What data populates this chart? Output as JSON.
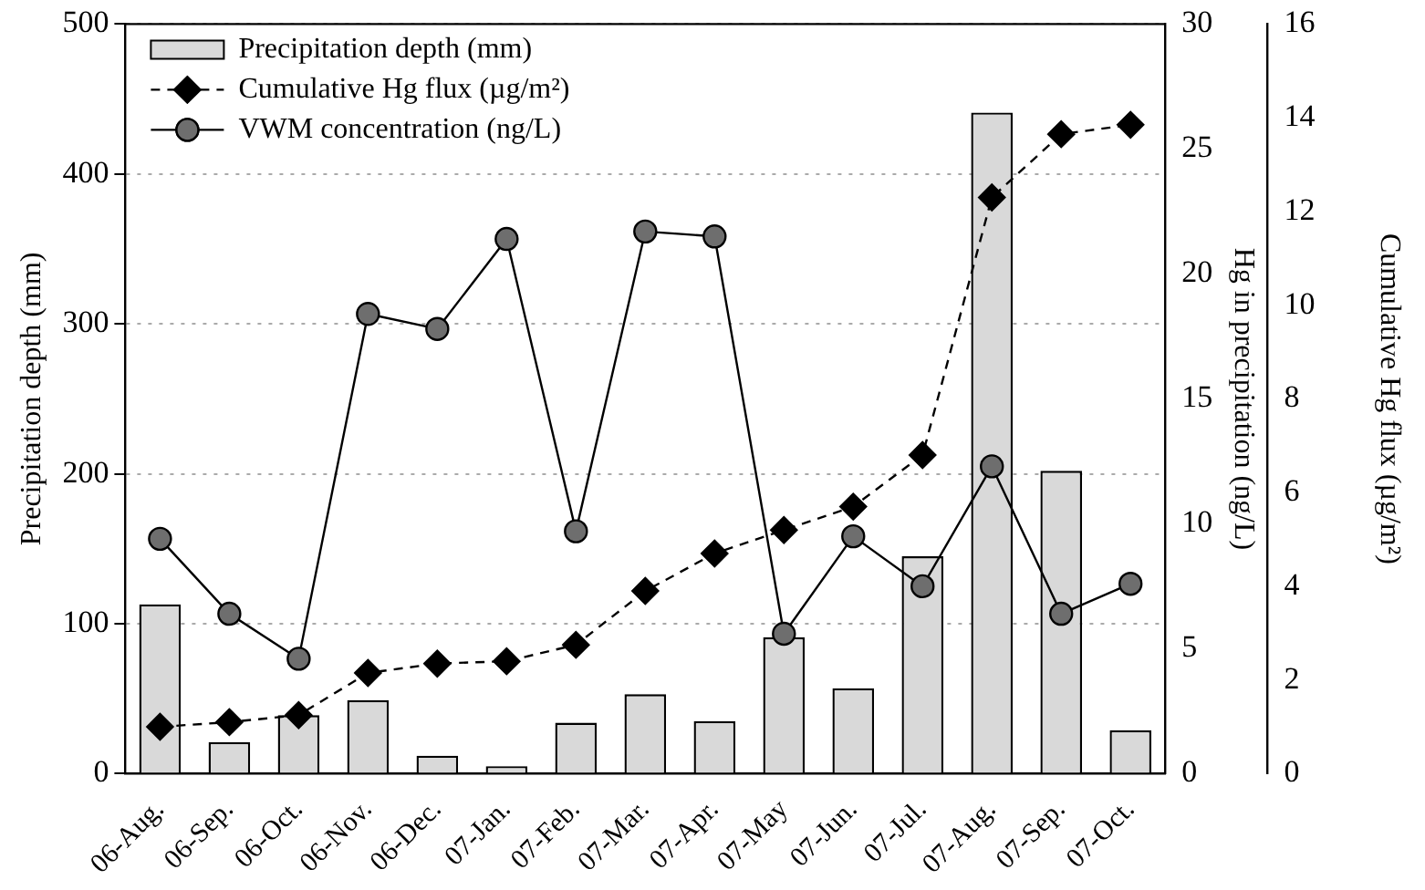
{
  "chart_data": {
    "type": "bar",
    "categories": [
      "06-Aug.",
      "06-Sep.",
      "06-Oct.",
      "06-Nov.",
      "06-Dec.",
      "07-Jan.",
      "07-Feb.",
      "07-Mar.",
      "07-Apr.",
      "07-May",
      "07-Jun.",
      "07-Jul.",
      "07-Aug.",
      "07-Sep.",
      "07-Oct."
    ],
    "ylabel": "Precipitation depth (mm)",
    "y2label": "Hg in precipitation (ng/L)",
    "y3label": "Cumulative Hg flux (µg/m²)",
    "ylim": [
      0,
      500
    ],
    "yticks": [
      0,
      100,
      200,
      300,
      400,
      500
    ],
    "y2lim": [
      0,
      30
    ],
    "y2ticks": [
      0,
      5,
      10,
      15,
      20,
      25,
      30
    ],
    "y3lim": [
      0,
      16
    ],
    "y3ticks": [
      0,
      2,
      4,
      6,
      8,
      10,
      12,
      14,
      16
    ],
    "grid": "y",
    "legend": "top left",
    "series": [
      {
        "name": "Precipitation depth (mm)",
        "color": "#d9d9d9",
        "values": [
          113,
          21,
          39,
          49,
          12,
          5,
          34,
          53,
          35,
          91,
          57,
          145,
          441,
          202,
          29
        ]
      },
      {
        "name": "Cumulative Hg flux (µg/m²)",
        "type": "line",
        "axis": "y3",
        "color": "#000000",
        "marker": "diamond",
        "line_style": "dashed",
        "values": [
          1.0,
          1.1,
          1.25,
          2.15,
          2.35,
          2.4,
          2.75,
          3.9,
          4.7,
          5.2,
          5.7,
          6.8,
          12.3,
          13.65,
          13.85
        ]
      },
      {
        "name": "VWM concentration (ng/L)",
        "type": "line",
        "axis": "y2",
        "color": "#000000",
        "marker": "circle",
        "line_style": "solid",
        "values": [
          9.4,
          6.4,
          4.6,
          18.4,
          17.8,
          21.4,
          9.7,
          21.7,
          21.5,
          5.6,
          9.5,
          7.5,
          12.3,
          6.4,
          7.6
        ]
      }
    ]
  }
}
